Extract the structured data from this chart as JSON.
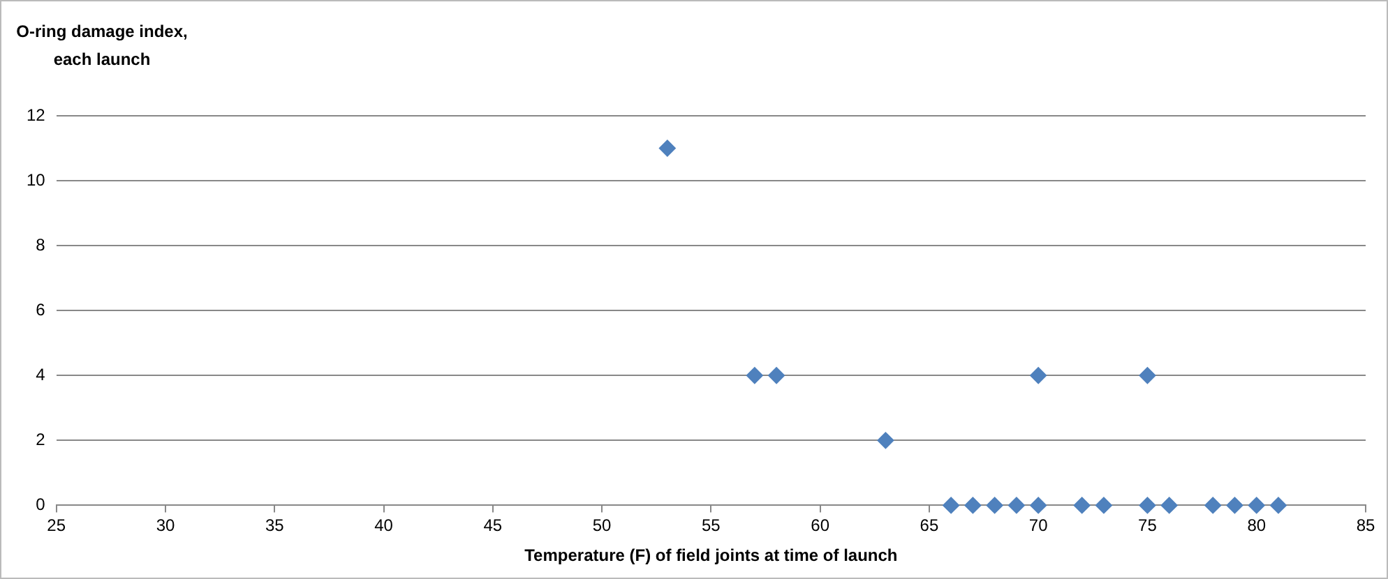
{
  "chart_data": {
    "type": "scatter",
    "xlabel": "Temperature (F) of field joints at time of launch",
    "ylabel": "O-ring damage index,\neach launch",
    "x": [
      53,
      57,
      58,
      63,
      70,
      75,
      66,
      67,
      68,
      69,
      70,
      72,
      73,
      75,
      76,
      78,
      79,
      80,
      81
    ],
    "series": [
      {
        "color": "#4f81bd",
        "values": [
          11,
          4,
          4,
          2,
          4,
          4,
          0,
          0,
          0,
          0,
          0,
          0,
          0,
          0,
          0,
          0,
          0,
          0,
          0
        ]
      }
    ],
    "xlim": [
      25,
      85
    ],
    "xticks": [
      25,
      30,
      35,
      40,
      45,
      50,
      55,
      60,
      65,
      70,
      75,
      80,
      85
    ],
    "ylim": [
      0,
      12
    ],
    "yticks": [
      0,
      2,
      4,
      6,
      8,
      10,
      12
    ],
    "grid": "y",
    "legend": false,
    "marker": "diamond"
  }
}
